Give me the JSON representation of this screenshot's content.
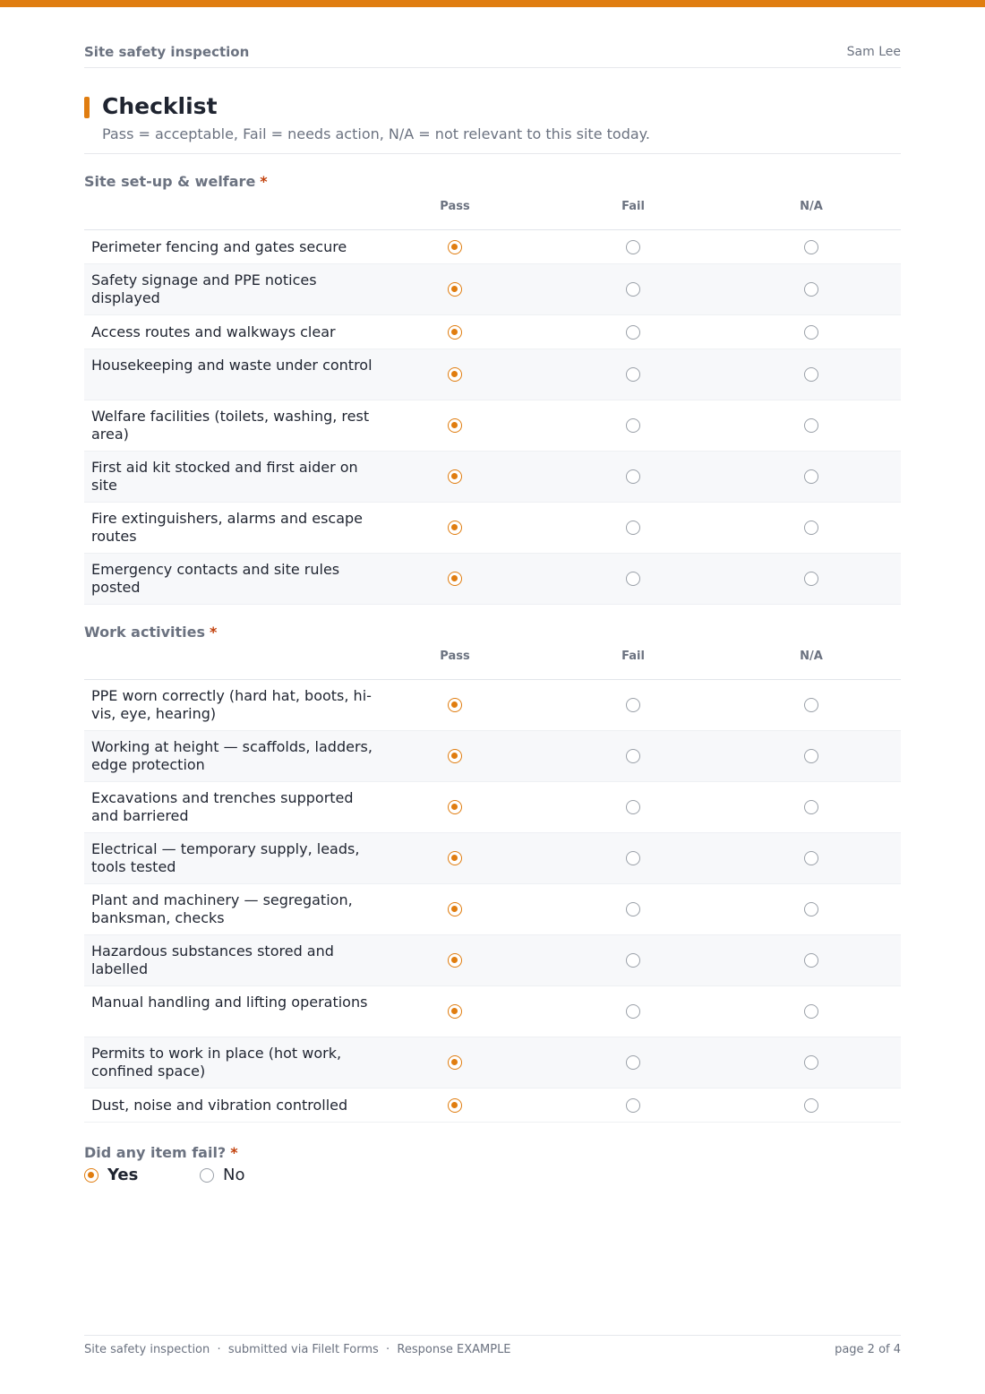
{
  "header": {
    "form_title": "Site safety inspection",
    "user_name": "Sam Lee"
  },
  "section": {
    "title": "Checklist",
    "description": "Pass = acceptable, Fail = needs action, N/A = not relevant to this site today."
  },
  "columns": [
    "Pass",
    "Fail",
    "N/A"
  ],
  "groups": [
    {
      "label": "Site set-up & welfare",
      "required_mark": "*",
      "rows": [
        {
          "label": "Perimeter fencing and gates secure",
          "selected": "Pass"
        },
        {
          "label": "Safety signage and PPE notices displayed",
          "selected": "Pass"
        },
        {
          "label": "Access routes and walkways clear",
          "selected": "Pass"
        },
        {
          "label": "Housekeeping and waste under control",
          "selected": "Pass"
        },
        {
          "label": "Welfare facilities (toilets, washing, rest area)",
          "selected": "Pass"
        },
        {
          "label": "First aid kit stocked and first aider on site",
          "selected": "Pass"
        },
        {
          "label": "Fire extinguishers, alarms and escape routes",
          "selected": "Pass"
        },
        {
          "label": "Emergency contacts and site rules posted",
          "selected": "Pass"
        }
      ]
    },
    {
      "label": "Work activities",
      "required_mark": "*",
      "rows": [
        {
          "label": "PPE worn correctly (hard hat, boots, hi-vis, eye, hearing)",
          "selected": "Pass"
        },
        {
          "label": "Working at height — scaffolds, ladders, edge protection",
          "selected": "Pass"
        },
        {
          "label": "Excavations and trenches supported and barriered",
          "selected": "Pass"
        },
        {
          "label": "Electrical — temporary supply, leads, tools tested",
          "selected": "Pass"
        },
        {
          "label": "Plant and machinery — segregation, banksman, checks",
          "selected": "Pass"
        },
        {
          "label": "Hazardous substances stored and labelled",
          "selected": "Pass"
        },
        {
          "label": "Manual handling and lifting operations",
          "selected": "Pass"
        },
        {
          "label": "Permits to work in place (hot work, confined space)",
          "selected": "Pass"
        },
        {
          "label": "Dust, noise and vibration controlled",
          "selected": "Pass"
        }
      ]
    }
  ],
  "fail_question": {
    "label": "Did any item fail?",
    "required_mark": "*",
    "options": [
      "Yes",
      "No"
    ],
    "selected": "Yes"
  },
  "footer": {
    "left": "Site safety inspection  ·  submitted via FileIt Forms  ·  Response EXAMPLE",
    "right": "page 2 of 4"
  },
  "colors": {
    "accent": "#e07d10",
    "required": "#c2410c",
    "muted_text": "#6b7280"
  },
  "icons": {
    "radio_selected": "radio-selected-icon",
    "radio_unselected": "radio-unselected-icon"
  }
}
